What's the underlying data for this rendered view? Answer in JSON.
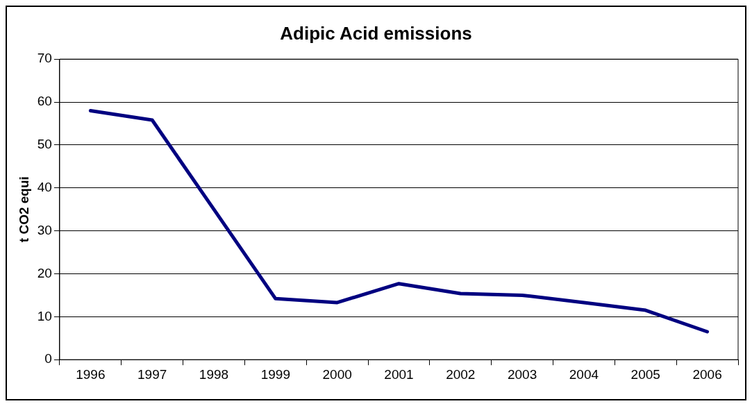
{
  "chart_data": {
    "type": "line",
    "title": "Adipic Acid emissions",
    "ylabel": "t CO2 equi",
    "categories": [
      "1996",
      "1997",
      "1998",
      "1999",
      "2000",
      "2001",
      "2002",
      "2003",
      "2004",
      "2005",
      "2006"
    ],
    "series": [
      {
        "color": "#000080",
        "values": [
          58,
          55.8,
          35,
          14.2,
          13.3,
          17.7,
          15.4,
          15,
          13.3,
          11.5,
          6.5
        ]
      }
    ],
    "ylim": [
      0,
      70
    ],
    "yticks": [
      0,
      10,
      20,
      30,
      40,
      50,
      60,
      70
    ],
    "grid": "y",
    "legend": false
  }
}
